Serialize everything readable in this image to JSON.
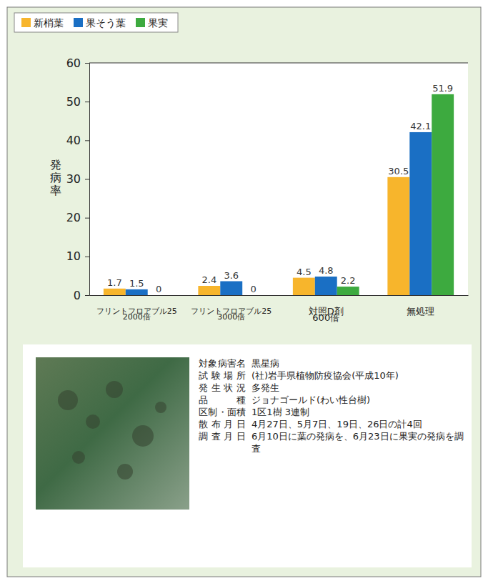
{
  "chart_data": {
    "type": "bar",
    "y_label": "発病率",
    "categories": [
      "フリントフロアブル25\n2000倍",
      "フリントフロアブル25\n3000倍",
      "対照D剤\n600倍",
      "無処理"
    ],
    "series": [
      {
        "name": "新梢葉",
        "color": "#f7b52c",
        "values": [
          1.7,
          2.4,
          4.5,
          30.5
        ]
      },
      {
        "name": "果そう葉",
        "color": "#1a6fc4",
        "values": [
          1.5,
          3.6,
          4.8,
          42.1
        ]
      },
      {
        "name": "果実",
        "color": "#3daa3f",
        "values": [
          0,
          0,
          2.2,
          51.9
        ]
      }
    ],
    "ylim": [
      0,
      60
    ],
    "yticks": [
      0,
      10,
      20,
      30,
      40,
      50,
      60
    ],
    "grid": false,
    "legend": "top-left",
    "data_labels": true
  },
  "info": {
    "rows": [
      [
        "対象病害名",
        "黒星病"
      ],
      [
        "試験場所",
        "(社)岩手県植物防疫協会(平成10年)"
      ],
      [
        "発生状況",
        "多発生"
      ],
      [
        "品種",
        "ジョナゴールド(わい性台樹)"
      ],
      [
        "区制・面積",
        "1区1樹 3連制"
      ],
      [
        "散布月日",
        "4月27日、5月7日、19日、26日の計4回"
      ],
      [
        "調査月日",
        "6月10日に葉の発病を、6月23日に果実の発病を調査"
      ]
    ]
  }
}
